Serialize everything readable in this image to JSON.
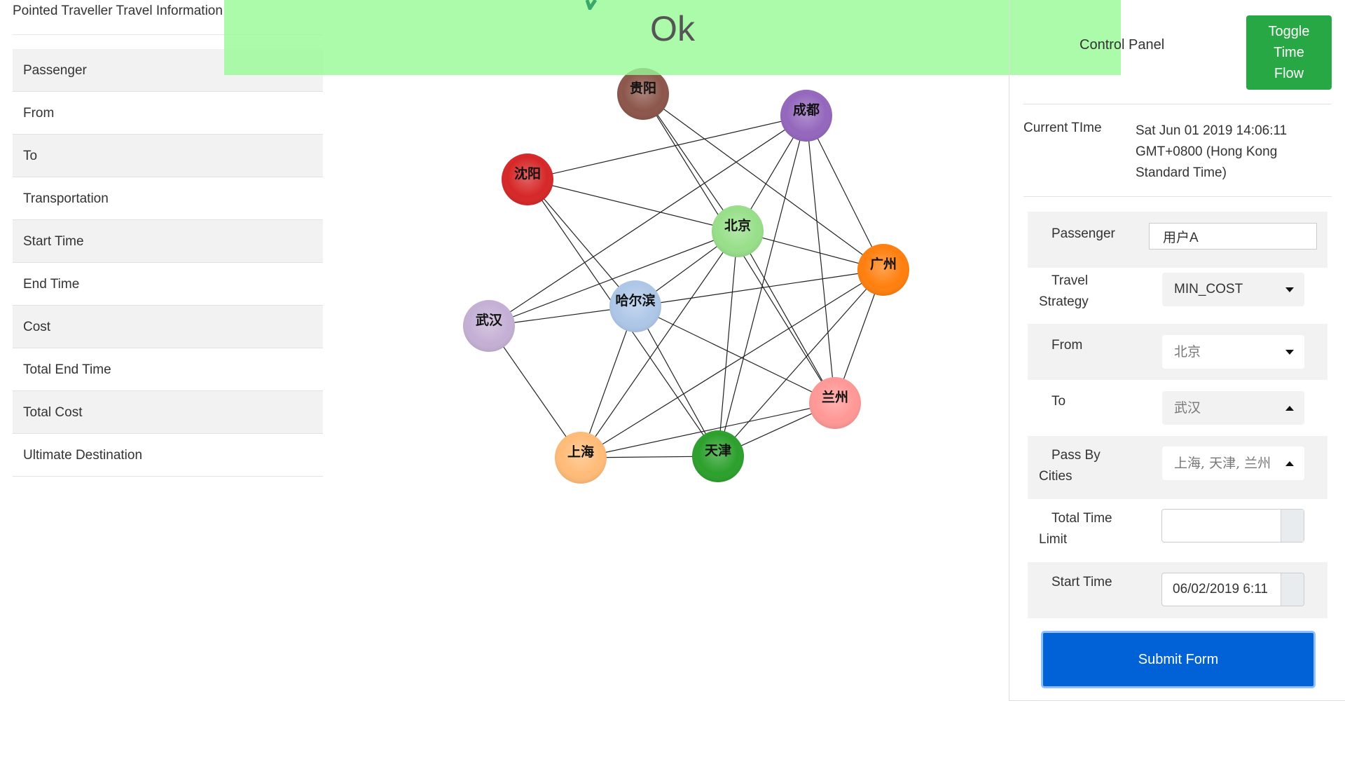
{
  "left_panel": {
    "title": "Pointed Traveller Travel Information",
    "rows": [
      "Passenger",
      "From",
      "To",
      "Transportation",
      "Start Time",
      "End Time",
      "Cost",
      "Total End Time",
      "Total Cost",
      "Ultimate Destination"
    ]
  },
  "toast": {
    "message": "Ok",
    "color": "#96fa96"
  },
  "graph": {
    "nodes": [
      {
        "id": "guiyang",
        "label": "贵阳",
        "color": "#8c564b"
      },
      {
        "id": "chengdu",
        "label": "成都",
        "color": "#9467bd"
      },
      {
        "id": "shenyang",
        "label": "沈阳",
        "color": "#d62728"
      },
      {
        "id": "beijing",
        "label": "北京",
        "color": "#98df8a"
      },
      {
        "id": "guangzhou",
        "label": "广州",
        "color": "#ff7f0e"
      },
      {
        "id": "wuhan",
        "label": "武汉",
        "color": "#c5b0d5"
      },
      {
        "id": "harbin",
        "label": "哈尔滨",
        "color": "#aec7e8"
      },
      {
        "id": "lanzhou",
        "label": "兰州",
        "color": "#ff9896"
      },
      {
        "id": "shanghai",
        "label": "上海",
        "color": "#ffbb78"
      },
      {
        "id": "tianjin",
        "label": "天津",
        "color": "#2ca02c"
      }
    ]
  },
  "control_panel": {
    "title": "Control Panel",
    "toggle_button": "Toggle\nTime\nFlow",
    "toggle_color": "#28a745",
    "current_time_label": "Current TIme",
    "current_time_value": "Sat Jun 01 2019 14:06:11 GMT+0800 (Hong Kong Standard Time)",
    "passenger": {
      "label": "Passenger",
      "value": "用户A"
    },
    "travel_strategy": {
      "label": "Travel Strategy",
      "value": "MIN_COST"
    },
    "from": {
      "label": "From",
      "value": "北京"
    },
    "to": {
      "label": "To",
      "value": "武汉"
    },
    "pass_by": {
      "label": "Pass By Cities",
      "value": "上海, 天津, 兰州"
    },
    "total_time_limit": {
      "label": "Total Time Limit",
      "value": ""
    },
    "start_time": {
      "label": "Start Time",
      "value": "06/02/2019 6:11"
    },
    "submit": "Submit Form",
    "submit_color": "#0062d6"
  }
}
